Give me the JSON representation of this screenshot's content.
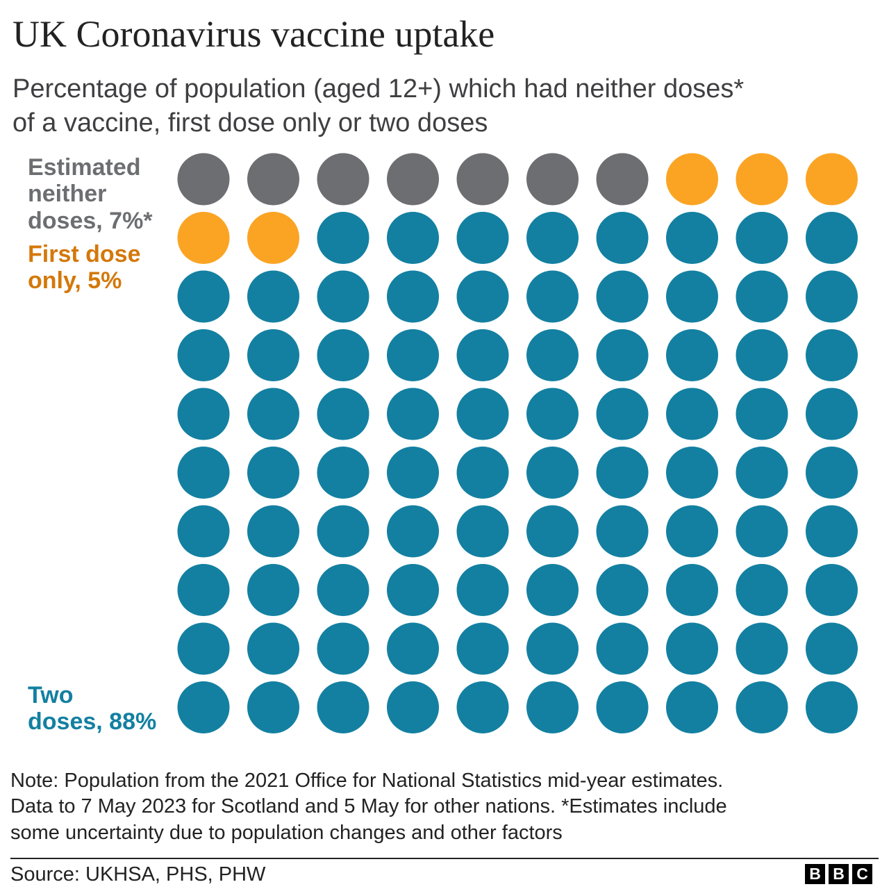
{
  "title": "UK Coronavirus vaccine uptake",
  "subtitle": {
    "line1": "Percentage of population (aged 12+) which had neither doses*",
    "line2": "of a vaccine, first dose only or two doses"
  },
  "legend": {
    "neither": {
      "line1": "Estimated",
      "line2": "neither",
      "line3": "doses, 7%*",
      "color": "#6d6e71"
    },
    "first": {
      "line1": "First dose",
      "line2": "only, 5%",
      "color": "#d4780a"
    },
    "two": {
      "line1": "Two",
      "line2": "doses, 88%",
      "color": "#1380a1"
    }
  },
  "chart_data": {
    "type": "waffle",
    "total_cells": 100,
    "series": [
      {
        "name": "Estimated neither doses",
        "value": 7,
        "color": "#6d6e71"
      },
      {
        "name": "First dose only",
        "value": 5,
        "color": "#fba424"
      },
      {
        "name": "Two doses",
        "value": 88,
        "color": "#1380a1"
      }
    ],
    "units": "%"
  },
  "note": {
    "line1": "Note: Population from the 2021 Office for National Statistics mid-year estimates.",
    "line2": "Data to 7 May 2023 for Scotland and 5 May for other nations. *Estimates include",
    "line3": "some uncertainty due to population changes and other factors"
  },
  "source": "Source: UKHSA, PHS, PHW",
  "logo": [
    "B",
    "B",
    "C"
  ]
}
